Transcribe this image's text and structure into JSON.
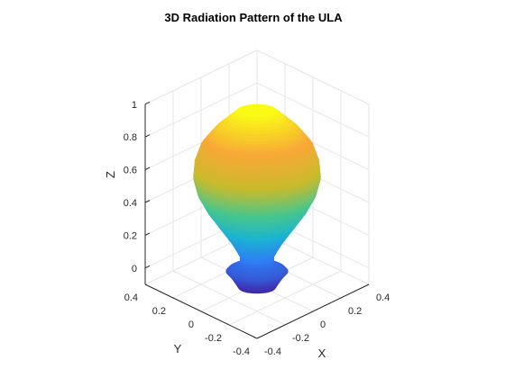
{
  "chart_data": {
    "type": "surface",
    "title": "3D Radiation Pattern of the ULA",
    "xlabel": "X",
    "ylabel": "Y",
    "zlabel": "Z",
    "x_ticks": [
      "-0.4",
      "-0.2",
      "0",
      "0.2",
      "0.4"
    ],
    "y_ticks": [
      "-0.4",
      "-0.2",
      "0",
      "0.2",
      "0.4"
    ],
    "z_ticks": [
      "0",
      "0.2",
      "0.4",
      "0.6",
      "0.8",
      "1"
    ],
    "x_values": [
      -0.4,
      -0.2,
      0,
      0.2,
      0.4
    ],
    "y_values": [
      -0.4,
      -0.2,
      0,
      0.2,
      0.4
    ],
    "z_values": [
      0,
      0.2,
      0.4,
      0.6,
      0.8,
      1
    ],
    "xlim": [
      -0.4,
      0.4
    ],
    "ylim": [
      -0.4,
      0.4
    ],
    "zlim": [
      -0.1,
      1
    ],
    "grid": true,
    "colormap": [
      "#3e26a8",
      "#2f7cf6",
      "#1ab4d1",
      "#49c68b",
      "#c9bb2a",
      "#f8a837",
      "#f9fb15"
    ],
    "profile_radius": [
      0.12,
      0.14,
      0.17,
      0.2,
      0.18,
      0.11,
      0.11,
      0.16,
      0.24,
      0.32,
      0.38,
      0.41,
      0.4,
      0.36,
      0.27,
      0.13
    ],
    "profile_z": [
      -0.12,
      -0.09,
      -0.05,
      -0.02,
      0.0,
      0.03,
      0.07,
      0.15,
      0.25,
      0.35,
      0.45,
      0.55,
      0.65,
      0.75,
      0.85,
      0.96
    ]
  }
}
